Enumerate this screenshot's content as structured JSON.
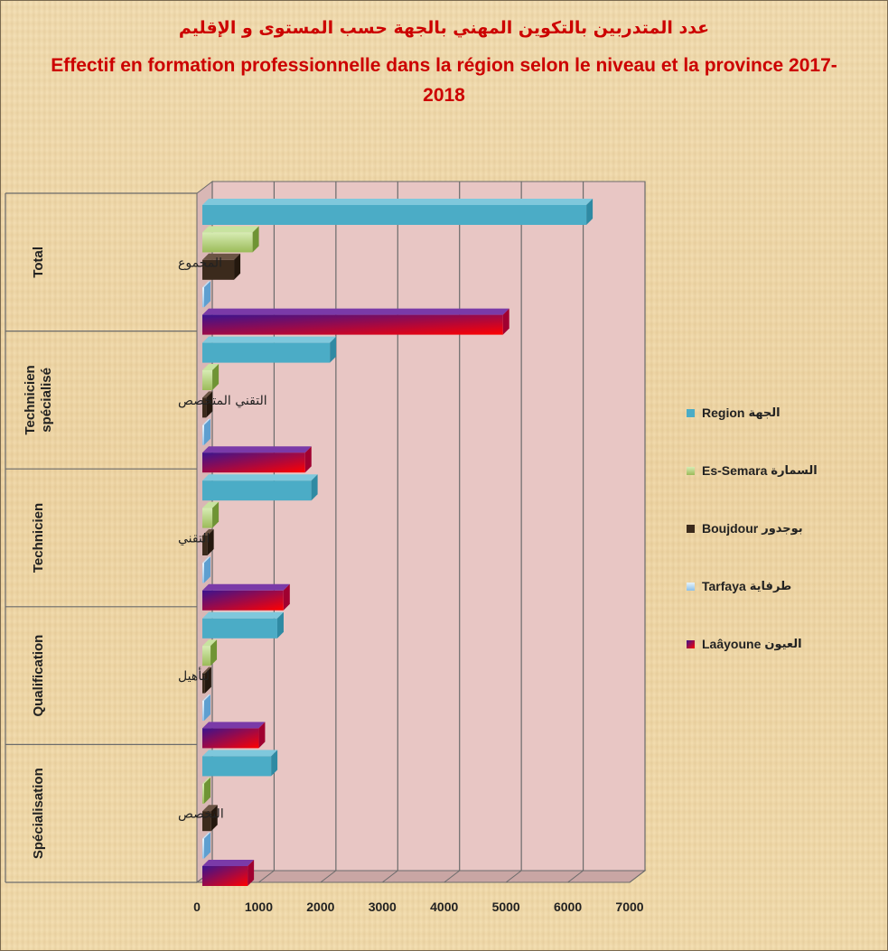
{
  "title_ar": "عدد المتدربين بالتكوين المهني بالجهة حسب المستوى و الإقليم",
  "title_fr": "Effectif en formation professionnelle dans la région selon le niveau et la province 2017-2018",
  "colors": {
    "region": "#4bacc6",
    "es_semara": "#9bbb59",
    "boujdour": "#3b2a1c",
    "tarfaya": "#8cc0e8",
    "laayoune_start": "#3a1490",
    "laayoune_end": "#ff0000",
    "plot_background": "#e8c6c4",
    "grid": "#6b6b6b"
  },
  "legend": [
    {
      "name": "Region",
      "name_ar": "الجهة",
      "series": "region"
    },
    {
      "name": "Es-Semara",
      "name_ar": "السمارة",
      "series": "es_semara"
    },
    {
      "name": "Boujdour",
      "name_ar": "بوجدور",
      "series": "boujdour"
    },
    {
      "name": "Tarfaya",
      "name_ar": "طرفاية",
      "series": "tarfaya"
    },
    {
      "name": "Laâyoune",
      "name_ar": "العيون",
      "series": "laayoune"
    }
  ],
  "chart_data": {
    "type": "bar",
    "orientation": "horizontal",
    "three_d": true,
    "title": "Effectif en formation professionnelle dans la région selon le niveau et la province 2017-2018",
    "categories": [
      {
        "level": "Total",
        "label_ar": "المجموع"
      },
      {
        "level": "Technicien spécialisé",
        "label_ar": "التقني المتخصص"
      },
      {
        "level": "Technicien",
        "label_ar": "التقني"
      },
      {
        "level": "Qualification",
        "label_ar": "لتأهيل"
      },
      {
        "level": "Spécialisation",
        "label_ar": "التخصص"
      }
    ],
    "series": [
      {
        "name": "Region",
        "key": "region",
        "values": [
          6300,
          2150,
          1850,
          1300,
          1200
        ]
      },
      {
        "name": "Es-Semara",
        "key": "es_semara",
        "values": [
          900,
          250,
          250,
          220,
          100
        ]
      },
      {
        "name": "Boujdour",
        "key": "boujdour",
        "values": [
          600,
          150,
          170,
          130,
          230
        ]
      },
      {
        "name": "Tarfaya",
        "key": "tarfaya",
        "values": [
          60,
          50,
          50,
          50,
          50
        ]
      },
      {
        "name": "Laâyoune",
        "key": "laayoune",
        "values": [
          4950,
          1750,
          1400,
          1000,
          820
        ]
      }
    ],
    "xlim": [
      0,
      7000
    ],
    "xticks": [
      "0",
      "1000",
      "2000",
      "3000",
      "4000",
      "5000",
      "6000",
      "7000"
    ],
    "grid": true,
    "legend_position": "right"
  }
}
